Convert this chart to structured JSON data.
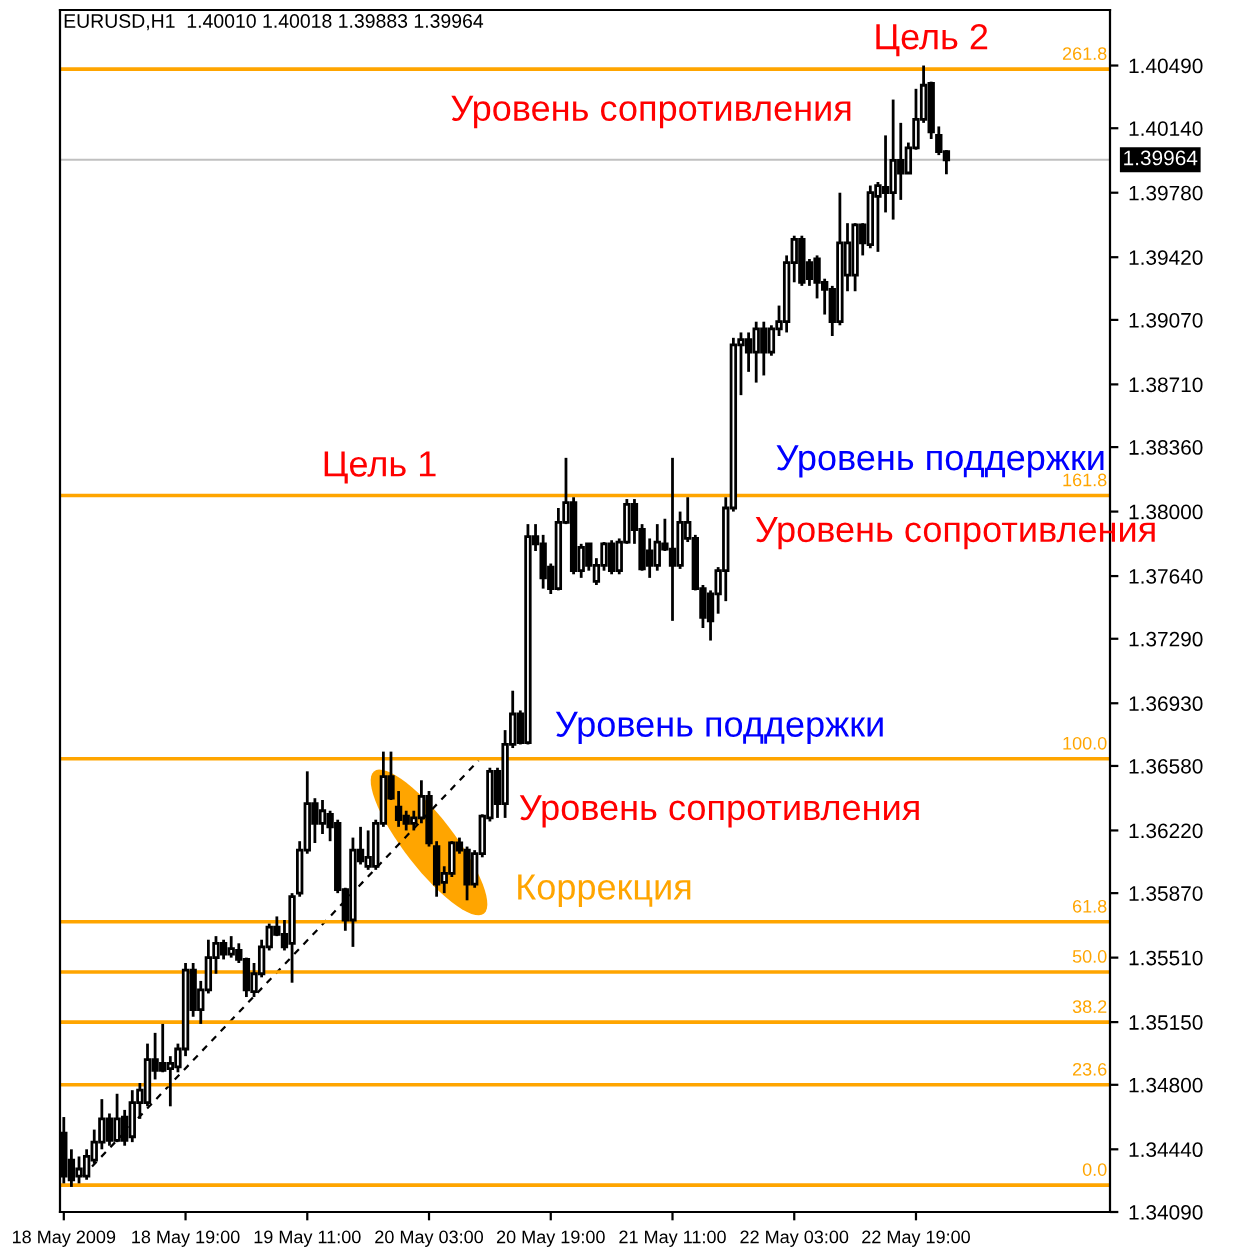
{
  "chart_data": {
    "type": "candlestick",
    "title": "EURUSD,H1  1.40010 1.40018 1.39883 1.39964",
    "series": [
      {
        "color": "#000000",
        "x": [
          "2009-05-18T03:00",
          "2009-05-18T04:00",
          "2009-05-18T05:00",
          "2009-05-18T06:00",
          "2009-05-18T07:00",
          "2009-05-18T08:00",
          "2009-05-18T09:00",
          "2009-05-18T10:00",
          "2009-05-18T11:00",
          "2009-05-18T12:00",
          "2009-05-18T13:00",
          "2009-05-18T14:00",
          "2009-05-18T15:00",
          "2009-05-18T16:00",
          "2009-05-18T17:00",
          "2009-05-18T18:00",
          "2009-05-18T19:00",
          "2009-05-18T20:00",
          "2009-05-18T21:00",
          "2009-05-18T22:00",
          "2009-05-18T23:00",
          "2009-05-19T00:00",
          "2009-05-19T01:00",
          "2009-05-19T02:00",
          "2009-05-19T03:00",
          "2009-05-19T04:00",
          "2009-05-19T05:00",
          "2009-05-19T06:00",
          "2009-05-19T07:00",
          "2009-05-19T08:00",
          "2009-05-19T09:00",
          "2009-05-19T10:00",
          "2009-05-19T11:00",
          "2009-05-19T12:00",
          "2009-05-19T13:00",
          "2009-05-19T14:00",
          "2009-05-19T15:00",
          "2009-05-19T16:00",
          "2009-05-19T17:00",
          "2009-05-19T18:00",
          "2009-05-19T19:00",
          "2009-05-19T20:00",
          "2009-05-19T21:00",
          "2009-05-19T22:00",
          "2009-05-19T23:00",
          "2009-05-20T00:00",
          "2009-05-20T01:00",
          "2009-05-20T02:00",
          "2009-05-20T03:00",
          "2009-05-20T04:00",
          "2009-05-20T05:00",
          "2009-05-20T06:00",
          "2009-05-20T07:00",
          "2009-05-20T08:00",
          "2009-05-20T09:00",
          "2009-05-20T10:00",
          "2009-05-20T11:00",
          "2009-05-20T12:00",
          "2009-05-20T13:00",
          "2009-05-20T14:00",
          "2009-05-20T15:00",
          "2009-05-20T16:00",
          "2009-05-20T17:00",
          "2009-05-20T18:00",
          "2009-05-20T19:00",
          "2009-05-20T20:00",
          "2009-05-20T21:00",
          "2009-05-20T22:00",
          "2009-05-20T23:00",
          "2009-05-21T00:00",
          "2009-05-21T01:00",
          "2009-05-21T02:00",
          "2009-05-21T03:00",
          "2009-05-21T04:00",
          "2009-05-21T05:00",
          "2009-05-21T06:00",
          "2009-05-21T07:00",
          "2009-05-21T08:00",
          "2009-05-21T09:00",
          "2009-05-21T10:00",
          "2009-05-21T11:00",
          "2009-05-21T12:00",
          "2009-05-21T13:00",
          "2009-05-21T14:00",
          "2009-05-21T15:00",
          "2009-05-21T16:00",
          "2009-05-21T17:00",
          "2009-05-21T18:00",
          "2009-05-21T19:00",
          "2009-05-21T20:00",
          "2009-05-21T21:00",
          "2009-05-21T22:00",
          "2009-05-21T23:00",
          "2009-05-22T00:00",
          "2009-05-22T01:00",
          "2009-05-22T02:00",
          "2009-05-22T03:00",
          "2009-05-22T04:00",
          "2009-05-22T05:00",
          "2009-05-22T06:00",
          "2009-05-22T07:00",
          "2009-05-22T08:00",
          "2009-05-22T09:00",
          "2009-05-22T10:00",
          "2009-05-22T11:00",
          "2009-05-22T12:00",
          "2009-05-22T13:00",
          "2009-05-22T14:00",
          "2009-05-22T15:00",
          "2009-05-22T16:00",
          "2009-05-22T17:00",
          "2009-05-22T18:00",
          "2009-05-22T19:00",
          "2009-05-22T20:00",
          "2009-05-22T21:00",
          "2009-05-22T22:00",
          "2009-05-22T23:00"
        ],
        "ohlc": [
          [
            1.3453,
            1.3462,
            1.3425,
            1.3429
          ],
          [
            1.3438,
            1.3444,
            1.3423,
            1.3427
          ],
          [
            1.3429,
            1.344,
            1.3425,
            1.3433
          ],
          [
            1.3429,
            1.3444,
            1.3427,
            1.344
          ],
          [
            1.3438,
            1.3455,
            1.3436,
            1.3448
          ],
          [
            1.3448,
            1.3472,
            1.3444,
            1.3461
          ],
          [
            1.3461,
            1.3464,
            1.3446,
            1.3449
          ],
          [
            1.3449,
            1.3475,
            1.3448,
            1.3461
          ],
          [
            1.3462,
            1.3466,
            1.3446,
            1.3449
          ],
          [
            1.3451,
            1.3477,
            1.3448,
            1.347
          ],
          [
            1.347,
            1.3481,
            1.3461,
            1.3477
          ],
          [
            1.347,
            1.3503,
            1.3468,
            1.3494
          ],
          [
            1.3494,
            1.3509,
            1.3483,
            1.3488
          ],
          [
            1.3492,
            1.3514,
            1.3487,
            1.3488
          ],
          [
            1.3489,
            1.3496,
            1.3468,
            1.3492
          ],
          [
            1.349,
            1.3503,
            1.3487,
            1.35
          ],
          [
            1.35,
            1.3548,
            1.3496,
            1.3544
          ],
          [
            1.3544,
            1.3548,
            1.3518,
            1.3522
          ],
          [
            1.3522,
            1.3538,
            1.3514,
            1.3533
          ],
          [
            1.3533,
            1.3561,
            1.3531,
            1.3551
          ],
          [
            1.3551,
            1.3563,
            1.3542,
            1.3559
          ],
          [
            1.3559,
            1.3561,
            1.355,
            1.3553
          ],
          [
            1.3553,
            1.3563,
            1.3551,
            1.3556
          ],
          [
            1.3555,
            1.3559,
            1.3548,
            1.355
          ],
          [
            1.355,
            1.3551,
            1.3529,
            1.3533
          ],
          [
            1.3532,
            1.3548,
            1.3529,
            1.3542
          ],
          [
            1.3542,
            1.3561,
            1.354,
            1.3557
          ],
          [
            1.3557,
            1.357,
            1.3555,
            1.3568
          ],
          [
            1.3568,
            1.3574,
            1.3563,
            1.3564
          ],
          [
            1.3564,
            1.3572,
            1.3555,
            1.3557
          ],
          [
            1.3559,
            1.3587,
            1.3537,
            1.3585
          ],
          [
            1.3587,
            1.3616,
            1.3585,
            1.3611
          ],
          [
            1.3611,
            1.3655,
            1.3609,
            1.3637
          ],
          [
            1.3637,
            1.364,
            1.3615,
            1.3626
          ],
          [
            1.3626,
            1.3639,
            1.362,
            1.3633
          ],
          [
            1.3631,
            1.3633,
            1.3616,
            1.3624
          ],
          [
            1.3626,
            1.3628,
            1.3587,
            1.3589
          ],
          [
            1.3589,
            1.359,
            1.3566,
            1.3572
          ],
          [
            1.3572,
            1.3618,
            1.3557,
            1.3611
          ],
          [
            1.3611,
            1.3624,
            1.3603,
            1.3605
          ],
          [
            1.3602,
            1.3622,
            1.36,
            1.3607
          ],
          [
            1.3602,
            1.3628,
            1.36,
            1.3626
          ],
          [
            1.3626,
            1.3666,
            1.3624,
            1.3652
          ],
          [
            1.3652,
            1.3666,
            1.3639,
            1.364
          ],
          [
            1.3635,
            1.3644,
            1.3624,
            1.3628
          ],
          [
            1.363,
            1.3633,
            1.3622,
            1.3626
          ],
          [
            1.3626,
            1.3633,
            1.3622,
            1.3629
          ],
          [
            1.3629,
            1.365,
            1.3626,
            1.3641
          ],
          [
            1.3641,
            1.3644,
            1.3613,
            1.3615
          ],
          [
            1.3613,
            1.3616,
            1.3585,
            1.3592
          ],
          [
            1.3593,
            1.3602,
            1.3587,
            1.3598
          ],
          [
            1.3598,
            1.3616,
            1.3596,
            1.3615
          ],
          [
            1.3615,
            1.3618,
            1.3609,
            1.3611
          ],
          [
            1.3611,
            1.3613,
            1.3583,
            1.3592
          ],
          [
            1.3592,
            1.3611,
            1.359,
            1.3609
          ],
          [
            1.3609,
            1.3631,
            1.3607,
            1.363
          ],
          [
            1.3629,
            1.3657,
            1.3627,
            1.3655
          ],
          [
            1.3655,
            1.3657,
            1.3629,
            1.3637
          ],
          [
            1.3637,
            1.3678,
            1.3629,
            1.367
          ],
          [
            1.367,
            1.37,
            1.3668,
            1.3687
          ],
          [
            1.3687,
            1.3689,
            1.367,
            1.3671
          ],
          [
            1.3671,
            1.3793,
            1.367,
            1.3786
          ],
          [
            1.3786,
            1.3793,
            1.3778,
            1.3782
          ],
          [
            1.3782,
            1.3787,
            1.3757,
            1.3763
          ],
          [
            1.3769,
            1.3771,
            1.3754,
            1.3757
          ],
          [
            1.3757,
            1.3802,
            1.3756,
            1.3794
          ],
          [
            1.3794,
            1.383,
            1.3793,
            1.3805
          ],
          [
            1.3805,
            1.3808,
            1.3765,
            1.3767
          ],
          [
            1.3767,
            1.3782,
            1.3763,
            1.378
          ],
          [
            1.3782,
            1.3782,
            1.3767,
            1.377
          ],
          [
            1.3761,
            1.3774,
            1.3759,
            1.377
          ],
          [
            1.377,
            1.3783,
            1.3767,
            1.3782
          ],
          [
            1.3782,
            1.3784,
            1.3765,
            1.3767
          ],
          [
            1.3767,
            1.3785,
            1.3765,
            1.3783
          ],
          [
            1.3783,
            1.3807,
            1.3782,
            1.3804
          ],
          [
            1.3804,
            1.3807,
            1.3782,
            1.379
          ],
          [
            1.379,
            1.3793,
            1.3767,
            1.3768
          ],
          [
            1.3778,
            1.3785,
            1.3763,
            1.377
          ],
          [
            1.377,
            1.3793,
            1.3767,
            1.3783
          ],
          [
            1.3782,
            1.3796,
            1.3778,
            1.3779
          ],
          [
            1.3779,
            1.383,
            1.3739,
            1.377
          ],
          [
            1.377,
            1.38,
            1.3768,
            1.3794
          ],
          [
            1.3785,
            1.3808,
            1.3783,
            1.3794
          ],
          [
            1.3785,
            1.3787,
            1.3756,
            1.3757
          ],
          [
            1.3757,
            1.3759,
            1.3735,
            1.3741
          ],
          [
            1.3754,
            1.3756,
            1.3728,
            1.3739
          ],
          [
            1.3754,
            1.3769,
            1.3743,
            1.3767
          ],
          [
            1.3767,
            1.3808,
            1.375,
            1.3802
          ],
          [
            1.3802,
            1.3897,
            1.38,
            1.3893
          ],
          [
            1.3893,
            1.39,
            1.3865,
            1.3896
          ],
          [
            1.3896,
            1.39,
            1.3878,
            1.3889
          ],
          [
            1.3889,
            1.3906,
            1.3872,
            1.3902
          ],
          [
            1.3902,
            1.3906,
            1.3876,
            1.3889
          ],
          [
            1.3889,
            1.3904,
            1.3887,
            1.3902
          ],
          [
            1.3902,
            1.3915,
            1.3898,
            1.3906
          ],
          [
            1.3906,
            1.3943,
            1.39,
            1.3939
          ],
          [
            1.3939,
            1.3954,
            1.3928,
            1.3952
          ],
          [
            1.3952,
            1.3954,
            1.3926,
            1.3928
          ],
          [
            1.3939,
            1.3941,
            1.3926,
            1.393
          ],
          [
            1.3941,
            1.3943,
            1.3919,
            1.3928
          ],
          [
            1.3928,
            1.393,
            1.391,
            1.3924
          ],
          [
            1.3924,
            1.3926,
            1.3898,
            1.3906
          ],
          [
            1.3906,
            1.3978,
            1.3904,
            1.395
          ],
          [
            1.3932,
            1.3961,
            1.3923,
            1.395
          ],
          [
            1.3932,
            1.3961,
            1.3923,
            1.396
          ],
          [
            1.396,
            1.3961,
            1.3943,
            1.395
          ],
          [
            1.3949,
            1.3982,
            1.3947,
            1.3978
          ],
          [
            1.3976,
            1.3984,
            1.3945,
            1.3982
          ],
          [
            1.3981,
            1.401,
            1.3967,
            1.3978
          ],
          [
            1.3978,
            1.403,
            1.3963,
            1.3996
          ],
          [
            1.3996,
            1.4017,
            1.3974,
            1.3989
          ],
          [
            1.3989,
            1.4006,
            1.3989,
            1.4003
          ],
          [
            1.4003,
            1.4036,
            1.4002,
            1.4019
          ],
          [
            1.4019,
            1.4049,
            1.4017,
            1.4038
          ],
          [
            1.4039,
            1.404,
            1.4008,
            1.4012
          ],
          [
            1.401,
            1.4015,
            1.3999,
            1.4001
          ],
          [
            1.4001,
            1.40018,
            1.39883,
            1.39964
          ]
        ]
      },
      {
        "type": "line",
        "color": "#000000",
        "line_style": "dashed",
        "x": [
          "2009-05-18T05:30",
          "2009-05-20T09:30"
        ],
        "values": [
          1.3429,
          1.3661
        ]
      }
    ],
    "xlim": [
      "2009-05-18T02:30",
      "2009-05-23T20:30"
    ],
    "xticks": [
      {
        "value": "2009-05-18T03:00",
        "label": "18 May 2009"
      },
      {
        "value": "2009-05-18T19:00",
        "label": "18 May 19:00"
      },
      {
        "value": "2009-05-19T11:00",
        "label": "19 May 11:00"
      },
      {
        "value": "2009-05-20T03:00",
        "label": "20 May 03:00"
      },
      {
        "value": "2009-05-20T19:00",
        "label": "20 May 19:00"
      },
      {
        "value": "2009-05-21T11:00",
        "label": "21 May 11:00"
      },
      {
        "value": "2009-05-22T03:00",
        "label": "22 May 03:00"
      },
      {
        "value": "2009-05-22T19:00",
        "label": "22 May 19:00"
      }
    ],
    "ylim": [
      1.3409,
      1.408
    ],
    "yticks": [
      {
        "value": 1.3409,
        "label": "1.34090"
      },
      {
        "value": 1.3444,
        "label": "1.34440"
      },
      {
        "value": 1.348,
        "label": "1.34800"
      },
      {
        "value": 1.3515,
        "label": "1.35150"
      },
      {
        "value": 1.3551,
        "label": "1.35510"
      },
      {
        "value": 1.3587,
        "label": "1.35870"
      },
      {
        "value": 1.3622,
        "label": "1.36220"
      },
      {
        "value": 1.3658,
        "label": "1.36580"
      },
      {
        "value": 1.3693,
        "label": "1.36930"
      },
      {
        "value": 1.3729,
        "label": "1.37290"
      },
      {
        "value": 1.3764,
        "label": "1.37640"
      },
      {
        "value": 1.38,
        "label": "1.38000"
      },
      {
        "value": 1.3836,
        "label": "1.38360"
      },
      {
        "value": 1.3871,
        "label": "1.38710"
      },
      {
        "value": 1.3907,
        "label": "1.39070"
      },
      {
        "value": 1.3942,
        "label": "1.39420"
      },
      {
        "value": 1.3978,
        "label": "1.39780"
      },
      {
        "value": 1.4014,
        "label": "1.40140"
      },
      {
        "value": 1.4049,
        "label": "1.40490"
      }
    ],
    "ref_lines": [
      {
        "axis": "y",
        "value": 1.4047,
        "color": "#ffa500"
      },
      {
        "axis": "y",
        "value": 1.3809,
        "color": "#ffa500"
      },
      {
        "axis": "y",
        "value": 1.3662,
        "color": "#ffa500"
      },
      {
        "axis": "y",
        "value": 1.3571,
        "color": "#ffa500"
      },
      {
        "axis": "y",
        "value": 1.3543,
        "color": "#ffa500"
      },
      {
        "axis": "y",
        "value": 1.3515,
        "color": "#ffa500"
      },
      {
        "axis": "y",
        "value": 1.348,
        "color": "#ffa500"
      },
      {
        "axis": "y",
        "value": 1.3424,
        "color": "#ffa500"
      },
      {
        "axis": "y",
        "value": 1.39964,
        "label": "1.39964",
        "color": "#c0c0c0"
      }
    ],
    "annotations": [
      "Цель 2",
      "Уровень сопротивления",
      "Цель 1",
      "Уровень поддержки",
      "Уровень сопротивления",
      "Уровень поддержки",
      "Уровень сопротивления",
      "Коррекция",
      {
        "text": "261.8",
        "x": "2009-05-23T20:30",
        "y": 1.4047
      },
      {
        "text": "161.8",
        "x": "2009-05-23T20:30",
        "y": 1.3809
      },
      {
        "text": "100.0",
        "x": "2009-05-23T20:30",
        "y": 1.3662
      },
      {
        "text": "61.8",
        "x": "2009-05-23T20:30",
        "y": 1.3571
      },
      {
        "text": "50.0",
        "x": "2009-05-23T20:30",
        "y": 1.3543
      },
      {
        "text": "38.2",
        "x": "2009-05-23T20:30",
        "y": 1.3515
      },
      {
        "text": "23.6",
        "x": "2009-05-23T20:30",
        "y": 1.348
      },
      {
        "text": "0.0",
        "x": "2009-05-23T20:30",
        "y": 1.3424
      }
    ],
    "grid": false,
    "legend": false
  }
}
